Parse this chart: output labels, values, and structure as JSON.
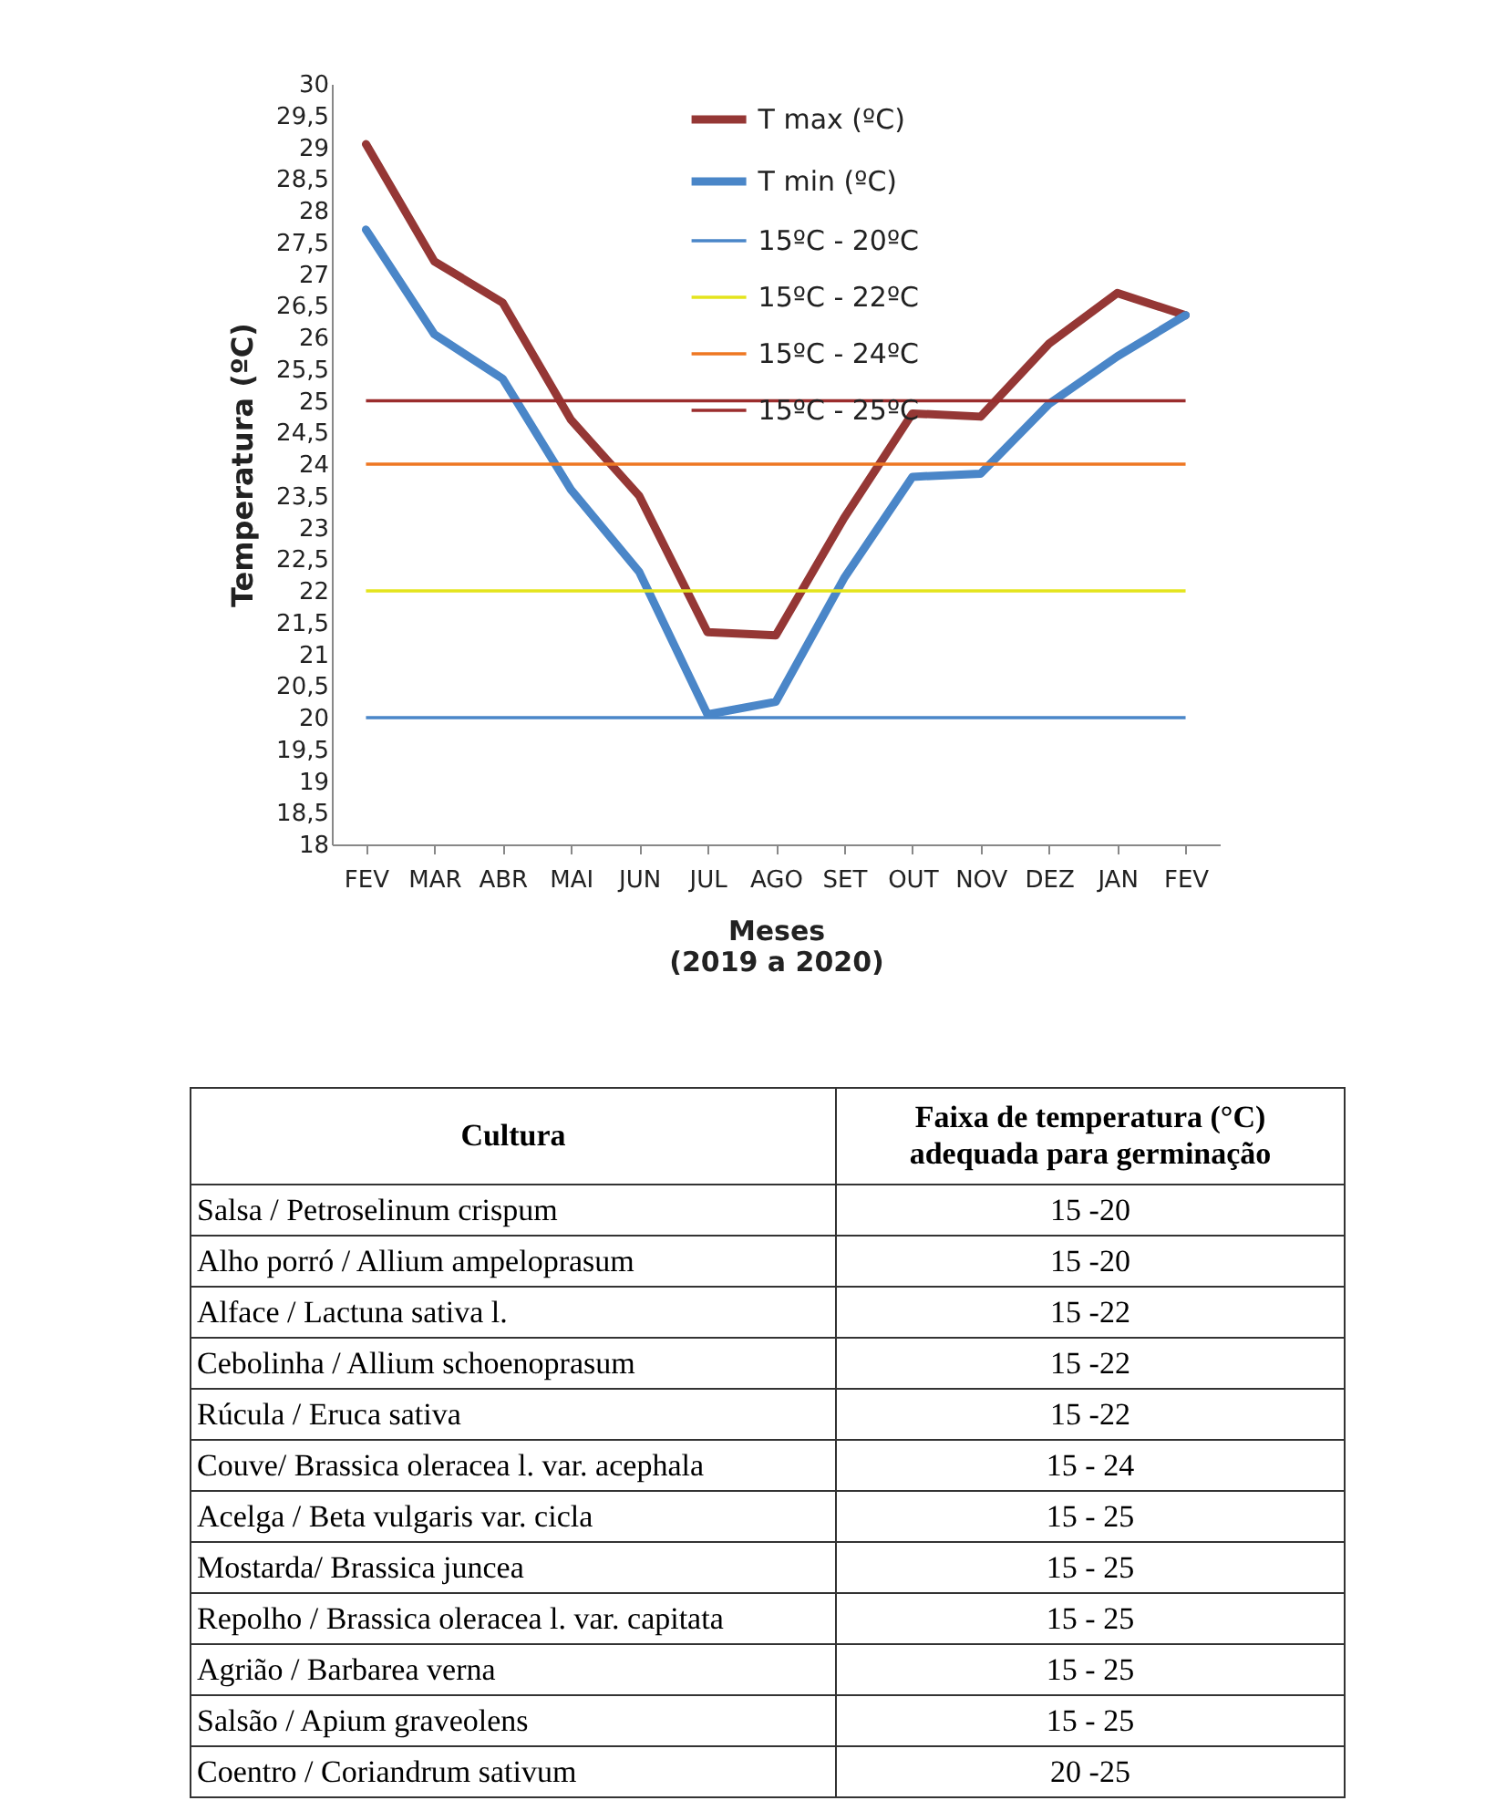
{
  "chart_data": [
    {
      "type": "line",
      "ylabel": "Temperatura (ºC)",
      "xlabel": "Meses\n(2019 a 2020)",
      "categories": [
        "FEV",
        "MAR",
        "ABR",
        "MAI",
        "JUN",
        "JUL",
        "AGO",
        "SET",
        "OUT",
        "NOV",
        "DEZ",
        "JAN",
        "FEV"
      ],
      "series": [
        {
          "name": "T max (ºC)",
          "color": "#953735",
          "values": [
            29.05,
            27.2,
            26.55,
            24.7,
            23.5,
            21.35,
            21.3,
            23.15,
            24.8,
            24.75,
            25.9,
            26.7,
            26.35
          ]
        },
        {
          "name": "T min (ºC)",
          "color": "#4a86c8",
          "values": [
            27.7,
            26.05,
            25.35,
            23.6,
            22.3,
            20.05,
            20.25,
            22.2,
            23.8,
            23.85,
            24.95,
            25.7,
            26.35
          ]
        }
      ],
      "ref_lines": [
        {
          "axis": "y",
          "value": 20,
          "label": "15ºC - 20ºC",
          "color": "#4a86c8"
        },
        {
          "axis": "y",
          "value": 22,
          "label": "15ºC - 22ºC",
          "color": "#e4e41c"
        },
        {
          "axis": "y",
          "value": 24,
          "label": "15ºC - 24ºC",
          "color": "#ee7722"
        },
        {
          "axis": "y",
          "value": 25,
          "label": "15ºC - 25ºC",
          "color": "#9b2d2d"
        }
      ],
      "ylim": [
        18,
        30
      ],
      "yticks": [
        18,
        {
          "value": 18.5,
          "label": "18,5"
        },
        19,
        {
          "value": 19.5,
          "label": "19,5"
        },
        20,
        {
          "value": 20.5,
          "label": "20,5"
        },
        21,
        {
          "value": 21.5,
          "label": "21,5"
        },
        22,
        {
          "value": 22.5,
          "label": "22,5"
        },
        23,
        {
          "value": 23.5,
          "label": "23,5"
        },
        24,
        {
          "value": 24.5,
          "label": "24,5"
        },
        25,
        {
          "value": 25.5,
          "label": "25,5"
        },
        26,
        {
          "value": 26.5,
          "label": "26,5"
        },
        27,
        {
          "value": 27.5,
          "label": "27,5"
        },
        28,
        {
          "value": 28.5,
          "label": "28,5"
        },
        29,
        {
          "value": 29.5,
          "label": "29,5"
        },
        30
      ],
      "legend": "top"
    },
    {
      "type": "other",
      "annotations": [
        "Cultura",
        "Faixa de temperatura (°C)\nadequada para germinação",
        "Salsa / Petroselinum crispum",
        "15 -20",
        "Alho porró / Allium ampeloprasum",
        "15 -20",
        "Alface / Lactuna sativa l.",
        "15 -22",
        "Cebolinha / Allium schoenoprasum",
        "15 -22",
        "Rúcula / Eruca sativa",
        "15 -22",
        "Couve/  Brassica oleracea l. var. acephala",
        "15 - 24",
        "Acelga / Beta vulgaris var. cicla",
        "15 - 25",
        "Mostarda/ Brassica juncea",
        "15 - 25",
        "Repolho / Brassica oleracea l. var. capitata",
        "15 - 25",
        "Agrião / Barbarea verna",
        "15 - 25",
        "Salsão / Apium graveolens",
        "15 - 25",
        "Coentro / Coriandrum sativum",
        "20 -25"
      ]
    }
  ]
}
